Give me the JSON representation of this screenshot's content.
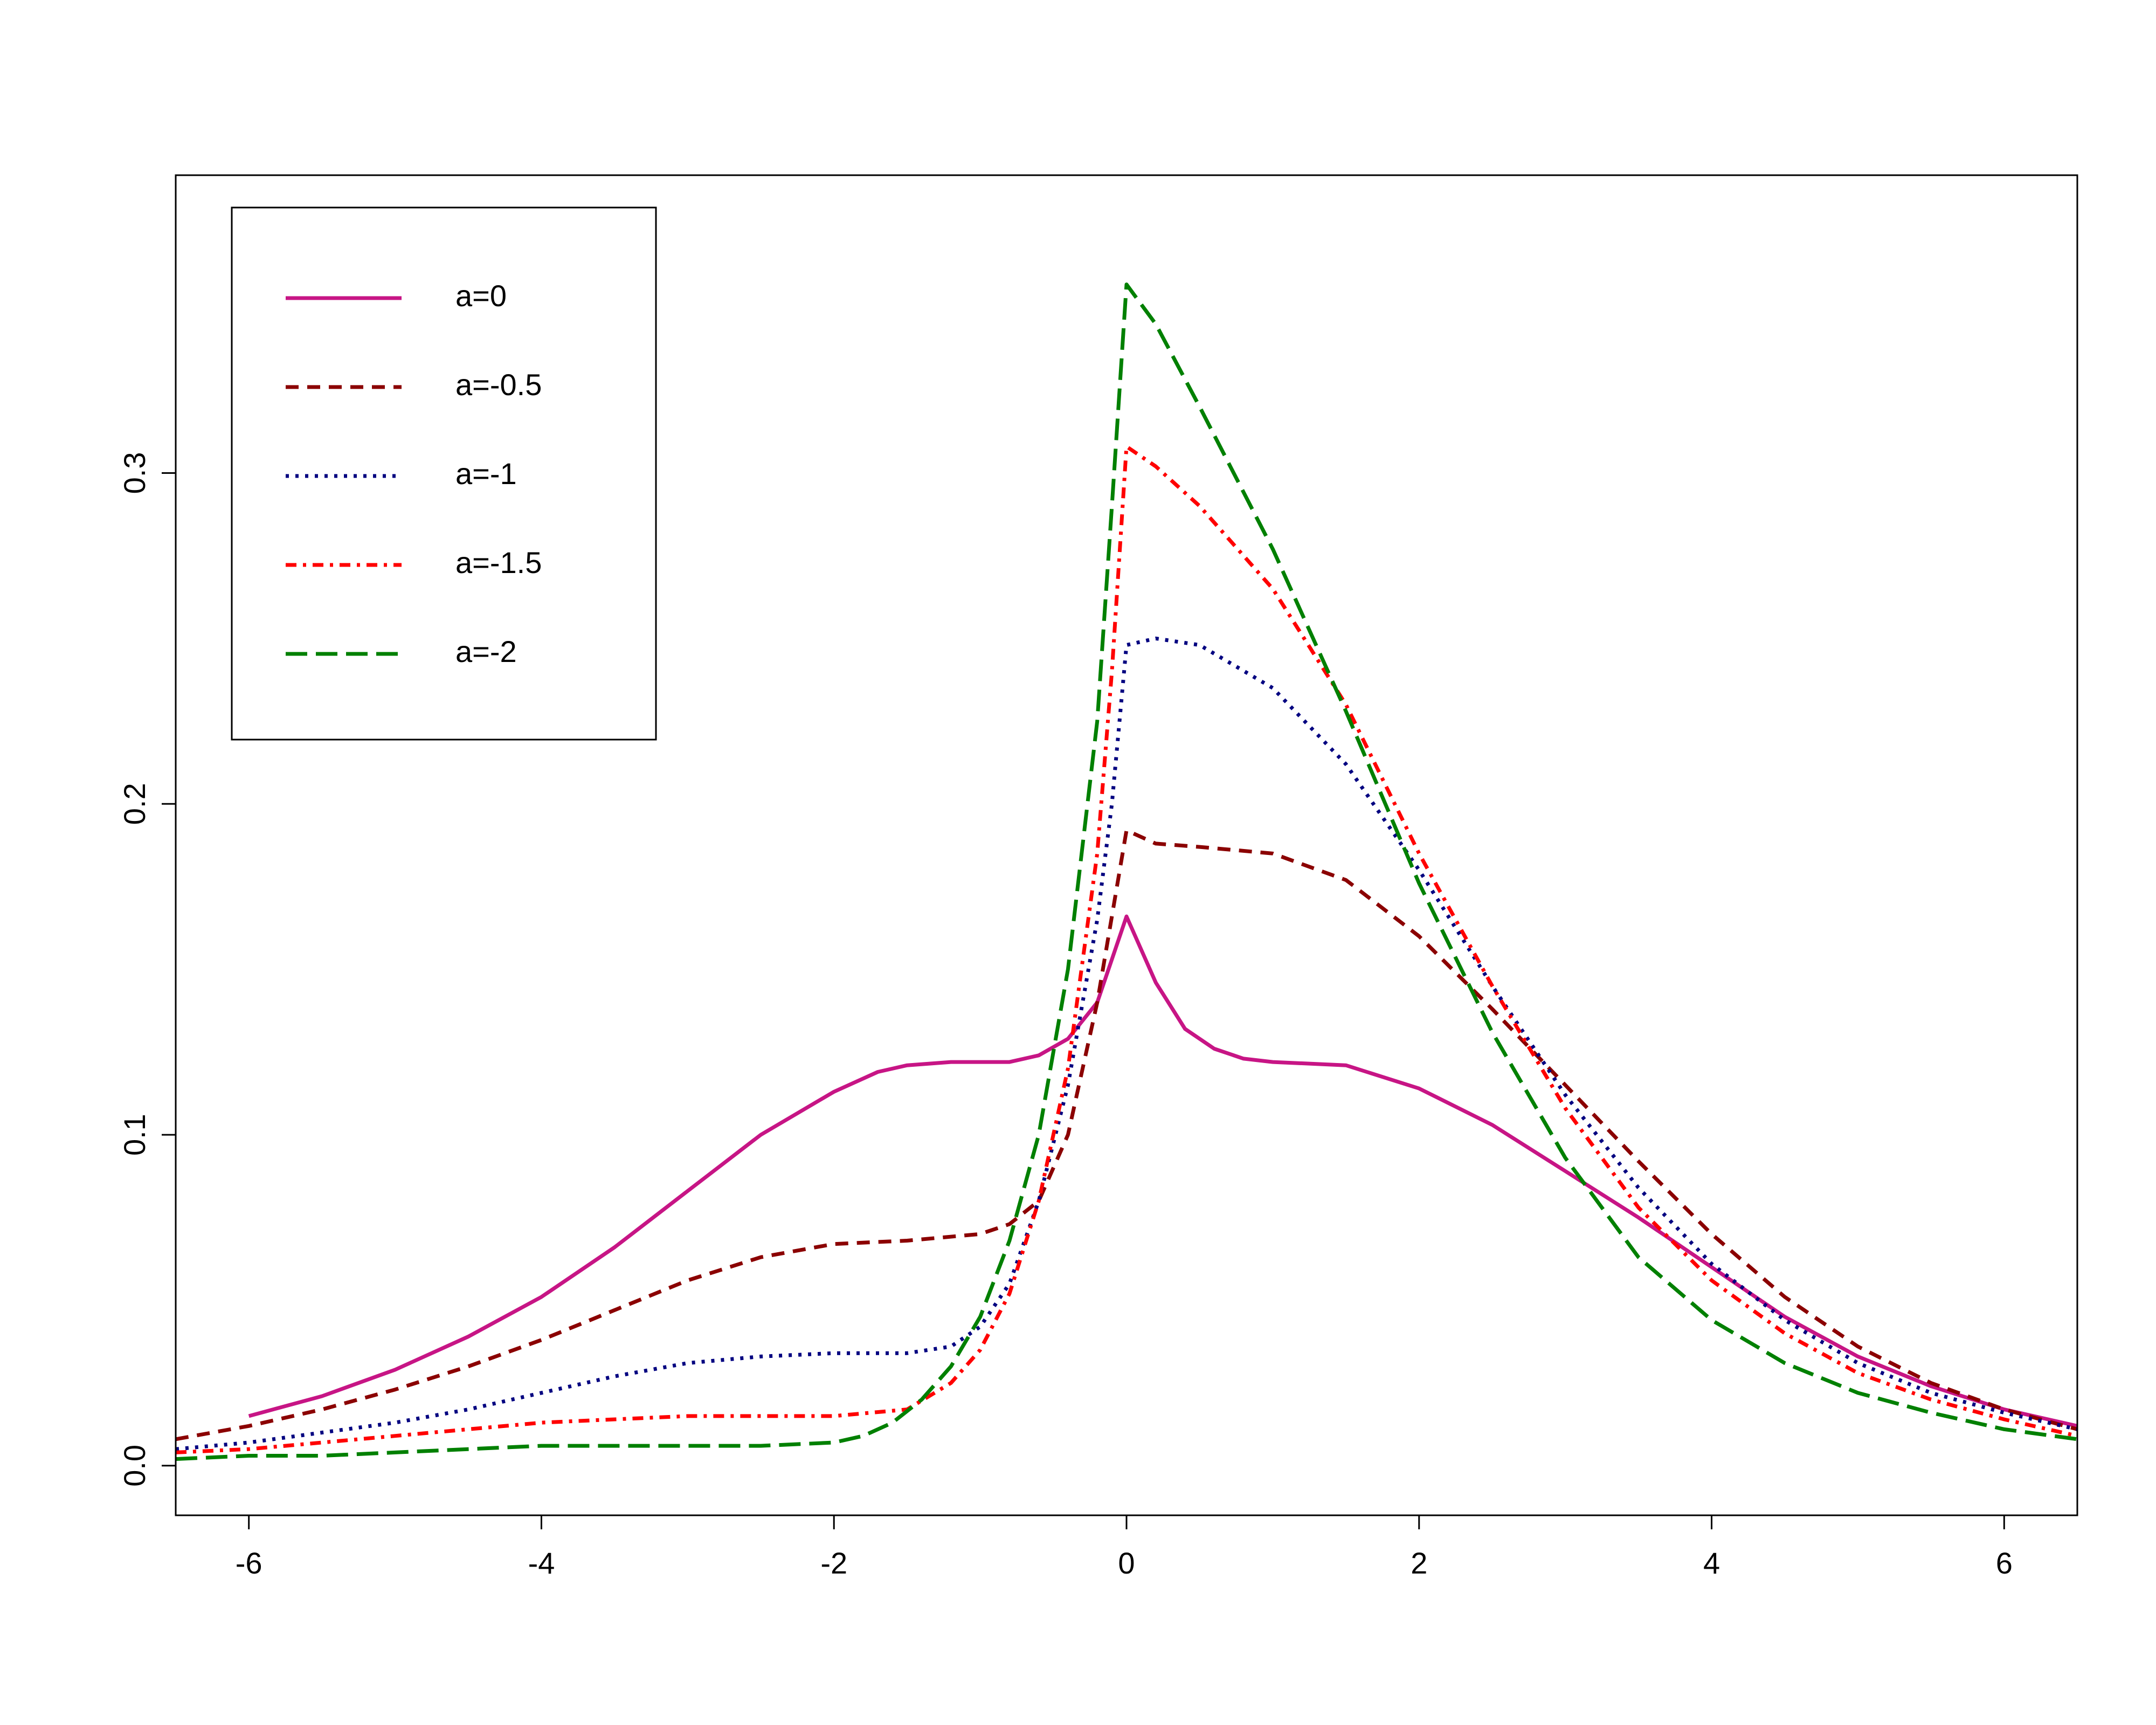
{
  "chart_data": {
    "type": "line",
    "title": "",
    "xlabel": "",
    "ylabel": "",
    "xlim": [
      -6.5,
      6.5
    ],
    "ylim": [
      -0.015,
      0.39
    ],
    "x_ticks": [
      -6,
      -4,
      -2,
      0,
      2,
      4,
      6
    ],
    "x_tick_labels": [
      "-6",
      "-4",
      "-2",
      "0",
      "2",
      "4",
      "6"
    ],
    "y_ticks": [
      0.0,
      0.1,
      0.2,
      0.3
    ],
    "y_tick_labels": [
      "0.0",
      "0.1",
      "0.2",
      "0.3"
    ],
    "grid": false,
    "legend_position": "top-left",
    "series": [
      {
        "name": "a=0",
        "color": "#C71585",
        "dash": "solid",
        "x": [
          -6,
          -5.5,
          -5,
          -4.5,
          -4,
          -3.5,
          -3,
          -2.5,
          -2,
          -1.7,
          -1.5,
          -1.2,
          -1,
          -0.8,
          -0.6,
          -0.4,
          -0.2,
          0,
          0.2,
          0.4,
          0.6,
          0.8,
          1,
          1.5,
          2,
          2.5,
          3,
          3.5,
          4,
          4.5,
          5,
          5.5,
          6,
          6.5
        ],
        "y": [
          0.015,
          0.021,
          0.029,
          0.039,
          0.051,
          0.066,
          0.083,
          0.1,
          0.113,
          0.119,
          0.121,
          0.122,
          0.122,
          0.122,
          0.124,
          0.129,
          0.14,
          0.166,
          0.146,
          0.132,
          0.126,
          0.123,
          0.122,
          0.121,
          0.114,
          0.103,
          0.089,
          0.075,
          0.06,
          0.045,
          0.033,
          0.024,
          0.017,
          0.012
        ]
      },
      {
        "name": "a=-0.5",
        "color": "#8B0000",
        "dash": "dashed",
        "x": [
          -6.5,
          -6,
          -5.5,
          -5,
          -4.5,
          -4,
          -3.5,
          -3,
          -2.5,
          -2,
          -1.5,
          -1,
          -0.8,
          -0.6,
          -0.4,
          -0.2,
          0,
          0.2,
          0.5,
          1,
          1.5,
          2,
          2.5,
          3,
          3.5,
          4,
          4.5,
          5,
          5.5,
          6,
          6.5
        ],
        "y": [
          0.008,
          0.012,
          0.017,
          0.023,
          0.03,
          0.038,
          0.047,
          0.056,
          0.063,
          0.067,
          0.068,
          0.07,
          0.073,
          0.08,
          0.1,
          0.14,
          0.192,
          0.188,
          0.187,
          0.185,
          0.177,
          0.16,
          0.138,
          0.115,
          0.092,
          0.07,
          0.051,
          0.036,
          0.025,
          0.017,
          0.011
        ]
      },
      {
        "name": "a=-1",
        "color": "#000080",
        "dash": "dotted",
        "x": [
          -6.5,
          -6,
          -5.5,
          -5,
          -4.5,
          -4,
          -3.5,
          -3,
          -2.5,
          -2,
          -1.5,
          -1.2,
          -1,
          -0.8,
          -0.6,
          -0.4,
          -0.2,
          -0.1,
          0,
          0.2,
          0.5,
          1,
          1.5,
          2,
          2.5,
          3,
          3.5,
          4,
          4.5,
          5,
          5.5,
          6,
          6.5
        ],
        "y": [
          0.005,
          0.007,
          0.01,
          0.013,
          0.017,
          0.022,
          0.027,
          0.031,
          0.033,
          0.034,
          0.034,
          0.036,
          0.042,
          0.055,
          0.08,
          0.115,
          0.165,
          0.2,
          0.248,
          0.25,
          0.248,
          0.235,
          0.212,
          0.18,
          0.145,
          0.112,
          0.084,
          0.061,
          0.044,
          0.031,
          0.022,
          0.016,
          0.011
        ]
      },
      {
        "name": "a=-1.5",
        "color": "#FF0000",
        "dash": "dashdot",
        "x": [
          -6.5,
          -6,
          -5.5,
          -5,
          -4.5,
          -4,
          -3.5,
          -3,
          -2.5,
          -2,
          -1.5,
          -1.2,
          -1,
          -0.8,
          -0.6,
          -0.4,
          -0.2,
          -0.1,
          0,
          0.2,
          0.5,
          1,
          1.5,
          2,
          2.5,
          3,
          3.5,
          4,
          4.5,
          5,
          5.5,
          6,
          6.5
        ],
        "y": [
          0.004,
          0.005,
          0.007,
          0.009,
          0.011,
          0.013,
          0.014,
          0.015,
          0.015,
          0.015,
          0.017,
          0.025,
          0.035,
          0.052,
          0.08,
          0.12,
          0.185,
          0.24,
          0.308,
          0.302,
          0.29,
          0.265,
          0.23,
          0.185,
          0.145,
          0.108,
          0.078,
          0.056,
          0.04,
          0.028,
          0.02,
          0.014,
          0.009
        ]
      },
      {
        "name": "a=-2",
        "color": "#008000",
        "dash": "longdash",
        "x": [
          -6.5,
          -6,
          -5.5,
          -5,
          -4.5,
          -4,
          -3.5,
          -3,
          -2.5,
          -2,
          -1.8,
          -1.6,
          -1.4,
          -1.2,
          -1,
          -0.8,
          -0.6,
          -0.4,
          -0.2,
          -0.1,
          0,
          0.2,
          0.5,
          1,
          1.5,
          2,
          2.5,
          3,
          3.5,
          4,
          4.5,
          5,
          5.5,
          6,
          6.5
        ],
        "y": [
          0.002,
          0.003,
          0.003,
          0.004,
          0.005,
          0.006,
          0.006,
          0.006,
          0.006,
          0.007,
          0.009,
          0.013,
          0.02,
          0.03,
          0.045,
          0.068,
          0.1,
          0.15,
          0.225,
          0.29,
          0.357,
          0.345,
          0.32,
          0.277,
          0.228,
          0.176,
          0.131,
          0.093,
          0.063,
          0.044,
          0.031,
          0.022,
          0.016,
          0.011,
          0.008
        ]
      }
    ]
  }
}
